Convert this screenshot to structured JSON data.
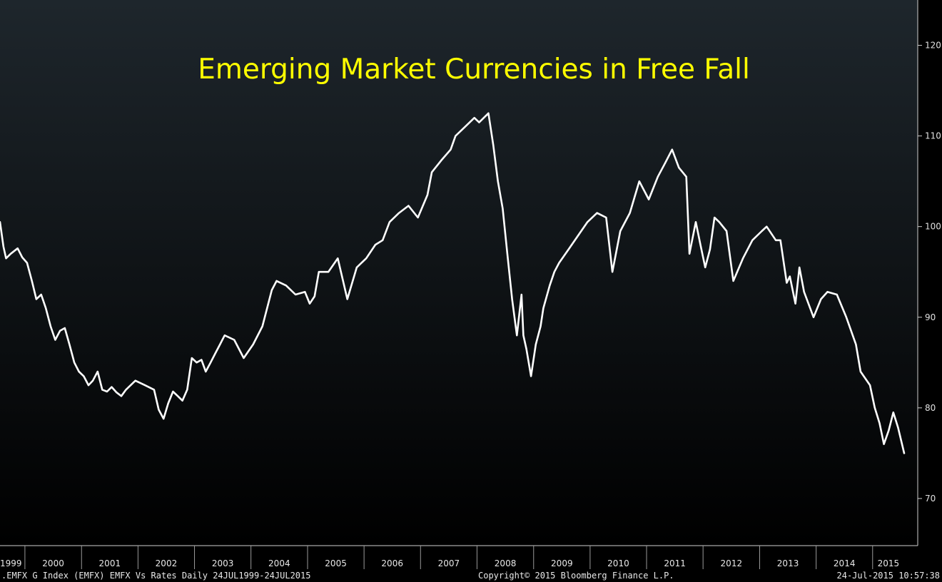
{
  "chart_data": {
    "type": "line",
    "title": "Emerging Market Currencies in Free Fall",
    "xlabel": "",
    "ylabel": "",
    "x_tick_labels": [
      "1999",
      "2000",
      "2001",
      "2002",
      "2003",
      "2004",
      "2005",
      "2006",
      "2007",
      "2008",
      "2009",
      "2010",
      "2011",
      "2012",
      "2013",
      "2014",
      "2015"
    ],
    "y_ticks": [
      70,
      80,
      90,
      100,
      110,
      120
    ],
    "ylim": [
      64.8,
      125
    ],
    "xlim": [
      "1999-07-24",
      "2015-07-24"
    ],
    "grid": false,
    "axis_position": "right",
    "series": [
      {
        "color": "#ffffff",
        "x": [
          "1999-07-24",
          "1999-08-15",
          "1999-09-01",
          "1999-10-01",
          "1999-11-15",
          "1999-12-15",
          "2000-01-15",
          "2000-02-15",
          "2000-03-15",
          "2000-04-15",
          "2000-05-15",
          "2000-06-15",
          "2000-07-15",
          "2000-08-15",
          "2000-09-15",
          "2000-10-15",
          "2000-11-15",
          "2000-12-15",
          "2001-01-15",
          "2001-02-15",
          "2001-03-15",
          "2001-04-15",
          "2001-05-15",
          "2001-06-15",
          "2001-07-15",
          "2001-08-15",
          "2001-09-15",
          "2001-10-15",
          "2001-12-15",
          "2002-02-15",
          "2002-04-15",
          "2002-05-15",
          "2002-06-15",
          "2002-07-15",
          "2002-08-15",
          "2002-09-15",
          "2002-10-15",
          "2002-11-15",
          "2002-12-15",
          "2003-01-15",
          "2003-02-15",
          "2003-03-15",
          "2003-04-15",
          "2003-05-15",
          "2003-06-15",
          "2003-07-15",
          "2003-09-15",
          "2003-11-15",
          "2004-01-15",
          "2004-03-15",
          "2004-05-15",
          "2004-06-15",
          "2004-08-15",
          "2004-10-15",
          "2004-12-15",
          "2005-01-15",
          "2005-02-15",
          "2005-03-15",
          "2005-05-15",
          "2005-07-15",
          "2005-09-15",
          "2005-11-15",
          "2006-01-15",
          "2006-03-15",
          "2006-05-01",
          "2006-06-15",
          "2006-08-15",
          "2006-10-15",
          "2006-12-15",
          "2007-02-15",
          "2007-03-15",
          "2007-05-15",
          "2007-07-15",
          "2007-08-15",
          "2007-10-15",
          "2007-12-15",
          "2008-01-15",
          "2008-03-15",
          "2008-04-15",
          "2008-05-15",
          "2008-06-15",
          "2008-07-15",
          "2008-08-15",
          "2008-09-15",
          "2008-10-15",
          "2008-10-27",
          "2008-11-15",
          "2008-12-15",
          "2009-01-15",
          "2009-02-15",
          "2009-03-05",
          "2009-04-15",
          "2009-05-15",
          "2009-06-15",
          "2009-08-15",
          "2009-10-15",
          "2009-12-15",
          "2010-02-15",
          "2010-04-15",
          "2010-05-25",
          "2010-07-15",
          "2010-09-15",
          "2010-11-15",
          "2011-01-15",
          "2011-03-15",
          "2011-05-01",
          "2011-06-15",
          "2011-07-29",
          "2011-09-15",
          "2011-10-05",
          "2011-11-15",
          "2011-12-15",
          "2012-01-15",
          "2012-02-15",
          "2012-03-15",
          "2012-04-15",
          "2012-06-01",
          "2012-07-15",
          "2012-09-15",
          "2012-11-15",
          "2013-01-15",
          "2013-02-15",
          "2013-04-15",
          "2013-05-15",
          "2013-06-25",
          "2013-07-15",
          "2013-08-20",
          "2013-09-15",
          "2013-10-15",
          "2013-12-15",
          "2014-02-01",
          "2014-03-15",
          "2014-05-15",
          "2014-07-15",
          "2014-09-15",
          "2014-10-15",
          "2014-12-15",
          "2015-01-15",
          "2015-02-15",
          "2015-03-15",
          "2015-04-15",
          "2015-05-15",
          "2015-06-15",
          "2015-07-24"
        ],
        "values": [
          100.5,
          97.8,
          96.5,
          97.0,
          97.6,
          96.6,
          96.0,
          94.0,
          92.0,
          92.5,
          91.0,
          89.0,
          87.5,
          88.5,
          88.8,
          87.0,
          85.0,
          84.0,
          83.5,
          82.5,
          83.0,
          84.0,
          82.0,
          81.8,
          82.3,
          81.7,
          81.3,
          82.0,
          83.0,
          82.5,
          82.0,
          79.8,
          78.8,
          80.5,
          81.8,
          81.3,
          80.8,
          82.0,
          85.5,
          85.0,
          85.3,
          84.0,
          85.0,
          86.0,
          87.0,
          88.0,
          87.5,
          85.5,
          87.0,
          89.0,
          93.0,
          94.0,
          93.5,
          92.5,
          92.8,
          91.5,
          92.3,
          95.0,
          95.0,
          96.5,
          92.0,
          95.5,
          96.5,
          98.0,
          98.5,
          100.5,
          101.5,
          102.3,
          101.0,
          103.5,
          106.0,
          107.3,
          108.5,
          110.0,
          111.0,
          112.0,
          111.5,
          112.5,
          109.0,
          105.0,
          102.0,
          97.0,
          92.0,
          88.0,
          92.5,
          88.0,
          86.5,
          83.5,
          87.0,
          89.0,
          91.0,
          93.5,
          95.0,
          96.0,
          97.5,
          99.0,
          100.5,
          101.5,
          101.0,
          95.0,
          99.5,
          101.5,
          105.0,
          103.0,
          105.5,
          107.0,
          108.5,
          106.5,
          105.5,
          97.0,
          100.5,
          98.0,
          95.5,
          97.5,
          101.0,
          100.5,
          99.5,
          94.0,
          96.5,
          98.5,
          99.5,
          100.0,
          98.5,
          98.5,
          93.8,
          94.5,
          91.5,
          95.5,
          92.8,
          90.0,
          92.0,
          92.8,
          92.5,
          90.0,
          87.0,
          84.0,
          82.5,
          80.0,
          78.3,
          76.0,
          77.5,
          79.5,
          77.8,
          75.0
        ]
      }
    ]
  },
  "footer": {
    "left": ".EMFX G Index (EMFX) EMFX Vs Rates  Daily 24JUL1999-24JUL2015",
    "center": "Copyright© 2015 Bloomberg Finance L.P.",
    "right": "24-Jul-2015 10:57:38"
  },
  "colors": {
    "background_top": "#1e262c",
    "background_bottom": "#000000",
    "title": "#ffff00",
    "line": "#ffffff",
    "axis": "#d0d0d0"
  }
}
